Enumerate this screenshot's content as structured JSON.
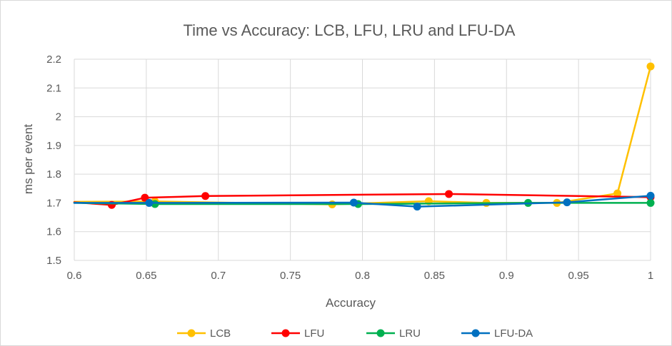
{
  "chart_data": {
    "type": "line",
    "title": "Time vs Accuracy: LCB, LFU, LRU and LFU-DA",
    "xlabel": "Accuracy",
    "ylabel": "ms per event",
    "xlim": [
      0.6,
      1.0
    ],
    "ylim": [
      1.5,
      2.2
    ],
    "xticks": [
      "0.6",
      "0.65",
      "0.7",
      "0.75",
      "0.8",
      "0.85",
      "0.9",
      "0.95",
      "1"
    ],
    "yticks": [
      "1.5",
      "1.6",
      "1.7",
      "1.8",
      "1.9",
      "2",
      "2.1",
      "2.2"
    ],
    "grid": true,
    "legend_position": "bottom",
    "series": [
      {
        "name": "LCB",
        "color": "#FFC000",
        "x": [
          0.6,
          0.656,
          0.779,
          0.846,
          0.886,
          0.935,
          0.977,
          1.0
        ],
        "y": [
          1.704,
          1.705,
          1.695,
          1.706,
          1.7,
          1.7,
          1.733,
          2.175
        ]
      },
      {
        "name": "LFU",
        "color": "#FF0000",
        "x": [
          0.6,
          0.626,
          0.649,
          0.691,
          0.86,
          1.0
        ],
        "y": [
          1.702,
          1.693,
          1.718,
          1.724,
          1.731,
          1.72
        ]
      },
      {
        "name": "LRU",
        "color": "#00B050",
        "x": [
          0.6,
          0.656,
          0.797,
          0.915,
          1.0
        ],
        "y": [
          1.7,
          1.696,
          1.696,
          1.7,
          1.7
        ]
      },
      {
        "name": "LFU-DA",
        "color": "#0070C0",
        "x": [
          0.6,
          0.652,
          0.794,
          0.838,
          0.942,
          1.0
        ],
        "y": [
          1.7,
          1.7,
          1.701,
          1.687,
          1.702,
          1.725
        ]
      }
    ]
  }
}
